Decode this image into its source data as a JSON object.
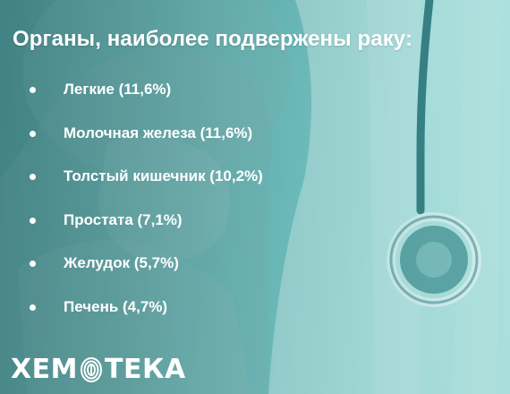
{
  "title": "Органы, наиболее подвержены раку:",
  "items": [
    {
      "label": "Легкие (11,6%)"
    },
    {
      "label": "Молочная железа (11,6%)"
    },
    {
      "label": "Толстый кишечник (10,2%)"
    },
    {
      "label": "Простата (7,1%)"
    },
    {
      "label": "Желудок (5,7%)"
    },
    {
      "label": "Печень (4,7%)"
    }
  ],
  "logo": {
    "text": "ХЕМОТЕКА",
    "part1": "ХЕМ",
    "part2": "ТЕКА"
  },
  "colors": {
    "text": "#ffffff",
    "teal_dark": "#1f6f73",
    "teal_light": "#86d3d0"
  },
  "icons": [
    "stethoscope-icon",
    "fingerprint-icon"
  ]
}
